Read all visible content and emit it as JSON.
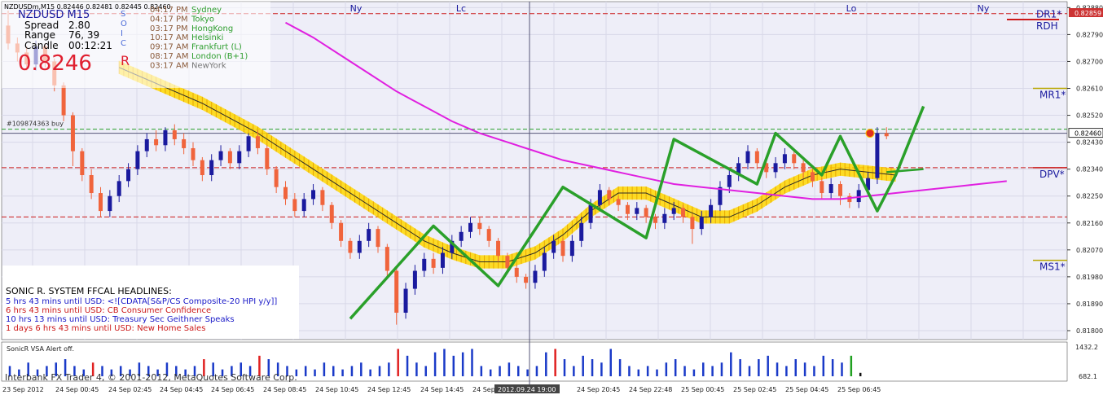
{
  "chart_data": {
    "type": "candlestick",
    "header": {
      "symbol_line": "NZDUSDm,M15  0.82446 0.82481 0.82445 0.82460",
      "pair_big": "NZDUSD",
      "tf_big": "M15",
      "spread_label": "Spread",
      "spread_value": "2.80",
      "range_label": "Range",
      "range_value": "76, 39",
      "candle_label": "Candle",
      "candle_value": "00:12:21",
      "price_big": "0.8246",
      "side_letters": [
        "S",
        "O",
        "I",
        "C",
        "R"
      ]
    },
    "sessions": [
      {
        "time": "04:17 PM",
        "name": "Sydney",
        "color": "#2e9e2e"
      },
      {
        "time": "04:17 PM",
        "name": "Tokyo",
        "color": "#2e9e2e"
      },
      {
        "time": "03:17 PM",
        "name": "HongKong",
        "color": "#2e9e2e"
      },
      {
        "time": "10:17 AM",
        "name": "Helsinki",
        "color": "#2e9e2e"
      },
      {
        "time": "09:17 AM",
        "name": "Frankfurt  (L)",
        "color": "#2e9e2e"
      },
      {
        "time": "08:17 AM",
        "name": "London  (B+1)",
        "color": "#2e9e2e"
      },
      {
        "time": "03:17 AM",
        "name": "NewYork",
        "color": "#777777"
      }
    ],
    "top_markers": [
      {
        "label": "Ny",
        "x": 437
      },
      {
        "label": "Lc",
        "x": 566
      },
      {
        "label": "Lo",
        "x": 1045
      },
      {
        "label": "Ny",
        "x": 1207
      }
    ],
    "y_axis": {
      "ylim": [
        0.8177,
        0.829
      ],
      "ticks": [
        "0.82880",
        "0.82790",
        "0.82700",
        "0.82610",
        "0.82520",
        "0.82430",
        "0.82340",
        "0.82250",
        "0.82160",
        "0.82070",
        "0.81980",
        "0.81890",
        "0.81800"
      ],
      "current_price": "0.82460",
      "top_price": "0.82859"
    },
    "levels": [
      {
        "name": "DR1*",
        "price": 0.8286,
        "style": "dash",
        "color": "#cc1a1a"
      },
      {
        "name": "RDH",
        "price": 0.8284,
        "style": "solid",
        "color": "#cc1a1a"
      },
      {
        "name": "MR1*",
        "price": 0.8261,
        "style": "solid",
        "color": "#b8a600"
      },
      {
        "name": "DPV*",
        "price": 0.82345,
        "style": "dash",
        "color": "#cc1a1a"
      },
      {
        "name": "MS1*",
        "price": 0.82035,
        "style": "solid",
        "color": "#b8a600"
      },
      {
        "name": "",
        "price": 0.8218,
        "style": "dash",
        "color": "#cc1a1a"
      }
    ],
    "order_line": {
      "label": "#109874363 buy",
      "price": 0.82468
    },
    "x_axis_labels": [
      "23 Sep 2012",
      "24 Sep 00:45",
      "24 Sep 02:45",
      "24 Sep 04:45",
      "24 Sep 06:45",
      "24 Sep 08:45",
      "24 Sep 10:45",
      "24 Sep 12:45",
      "24 Sep 14:45",
      "24 Sep 16:45",
      "2012.09.24 19:00",
      "24 Sep 20:45",
      "24 Sep 22:48",
      "25 Sep 00:45",
      "25 Sep 02:45",
      "25 Sep 04:45",
      "25 Sep 06:45"
    ],
    "highlighted_time": "2012.09.24 19:00",
    "candles": [
      [
        0.8282,
        0.8276,
        0.8287,
        0.8274
      ],
      [
        0.8276,
        0.8273,
        0.8278,
        0.827
      ],
      [
        0.8273,
        0.8269,
        0.8275,
        0.8267
      ],
      [
        0.8269,
        0.8275,
        0.8277,
        0.8267
      ],
      [
        0.8275,
        0.827,
        0.8276,
        0.8268
      ],
      [
        0.827,
        0.8262,
        0.8271,
        0.826
      ],
      [
        0.8262,
        0.8252,
        0.8263,
        0.825
      ],
      [
        0.8252,
        0.824,
        0.8253,
        0.8235
      ],
      [
        0.824,
        0.8232,
        0.8241,
        0.823
      ],
      [
        0.8232,
        0.8226,
        0.8234,
        0.8224
      ],
      [
        0.8226,
        0.822,
        0.8228,
        0.8218
      ],
      [
        0.822,
        0.8225,
        0.8227,
        0.8218
      ],
      [
        0.8225,
        0.823,
        0.8232,
        0.8223
      ],
      [
        0.823,
        0.8234,
        0.8236,
        0.8228
      ],
      [
        0.8234,
        0.824,
        0.8242,
        0.8232
      ],
      [
        0.824,
        0.8244,
        0.8246,
        0.8238
      ],
      [
        0.8244,
        0.8242,
        0.8247,
        0.824
      ],
      [
        0.8242,
        0.8247,
        0.8248,
        0.824
      ],
      [
        0.8247,
        0.8244,
        0.8249,
        0.8242
      ],
      [
        0.8244,
        0.8241,
        0.8246,
        0.8239
      ],
      [
        0.8241,
        0.8237,
        0.8243,
        0.8235
      ],
      [
        0.8237,
        0.8232,
        0.8238,
        0.823
      ],
      [
        0.8232,
        0.8237,
        0.8239,
        0.823
      ],
      [
        0.8237,
        0.824,
        0.8242,
        0.8235
      ],
      [
        0.824,
        0.8236,
        0.8241,
        0.8234
      ],
      [
        0.8236,
        0.824,
        0.8242,
        0.8234
      ],
      [
        0.824,
        0.8245,
        0.8246,
        0.8238
      ],
      [
        0.8245,
        0.8241,
        0.8247,
        0.8239
      ],
      [
        0.8241,
        0.8234,
        0.8242,
        0.8232
      ],
      [
        0.8234,
        0.8228,
        0.8235,
        0.8226
      ],
      [
        0.8228,
        0.8224,
        0.823,
        0.8222
      ],
      [
        0.8224,
        0.822,
        0.8226,
        0.8218
      ],
      [
        0.822,
        0.8224,
        0.8226,
        0.8218
      ],
      [
        0.8224,
        0.8227,
        0.8229,
        0.8222
      ],
      [
        0.8227,
        0.8222,
        0.8228,
        0.822
      ],
      [
        0.8222,
        0.8216,
        0.8223,
        0.8214
      ],
      [
        0.8216,
        0.821,
        0.8217,
        0.8208
      ],
      [
        0.821,
        0.8206,
        0.8211,
        0.8204
      ],
      [
        0.8206,
        0.821,
        0.8212,
        0.8204
      ],
      [
        0.821,
        0.8214,
        0.8216,
        0.8208
      ],
      [
        0.8214,
        0.8208,
        0.8215,
        0.8206
      ],
      [
        0.8208,
        0.82,
        0.8209,
        0.8198
      ],
      [
        0.82,
        0.8186,
        0.8201,
        0.8182
      ],
      [
        0.8186,
        0.8194,
        0.8196,
        0.8184
      ],
      [
        0.8194,
        0.82,
        0.8202,
        0.8192
      ],
      [
        0.82,
        0.8204,
        0.8206,
        0.8198
      ],
      [
        0.8204,
        0.8201,
        0.8206,
        0.8199
      ],
      [
        0.8201,
        0.8206,
        0.8208,
        0.8199
      ],
      [
        0.8206,
        0.821,
        0.8212,
        0.8204
      ],
      [
        0.821,
        0.8213,
        0.8215,
        0.8208
      ],
      [
        0.8213,
        0.8216,
        0.8218,
        0.8211
      ],
      [
        0.8216,
        0.8214,
        0.8218,
        0.8212
      ],
      [
        0.8214,
        0.821,
        0.8215,
        0.8208
      ],
      [
        0.821,
        0.8205,
        0.8211,
        0.8203
      ],
      [
        0.8205,
        0.8201,
        0.8206,
        0.8199
      ],
      [
        0.8201,
        0.8198,
        0.8202,
        0.8196
      ],
      [
        0.8198,
        0.8196,
        0.8199,
        0.8194
      ],
      [
        0.8196,
        0.82,
        0.8202,
        0.8194
      ],
      [
        0.82,
        0.8206,
        0.8208,
        0.8198
      ],
      [
        0.8206,
        0.821,
        0.8212,
        0.8204
      ],
      [
        0.821,
        0.8205,
        0.8211,
        0.8203
      ],
      [
        0.8205,
        0.821,
        0.8212,
        0.8203
      ],
      [
        0.821,
        0.8216,
        0.8218,
        0.8208
      ],
      [
        0.8216,
        0.8222,
        0.8224,
        0.8214
      ],
      [
        0.8222,
        0.8227,
        0.8229,
        0.822
      ],
      [
        0.8227,
        0.8224,
        0.8228,
        0.8222
      ],
      [
        0.8224,
        0.8222,
        0.8225,
        0.822
      ],
      [
        0.8222,
        0.8219,
        0.8223,
        0.8217
      ],
      [
        0.8219,
        0.8221,
        0.8223,
        0.8217
      ],
      [
        0.8221,
        0.8218,
        0.8222,
        0.8216
      ],
      [
        0.8218,
        0.8216,
        0.8219,
        0.8214
      ],
      [
        0.8216,
        0.8219,
        0.8221,
        0.8214
      ],
      [
        0.8219,
        0.8221,
        0.8223,
        0.8217
      ],
      [
        0.8221,
        0.8218,
        0.8222,
        0.8216
      ],
      [
        0.8218,
        0.8214,
        0.8219,
        0.8209
      ],
      [
        0.8214,
        0.8218,
        0.822,
        0.8212
      ],
      [
        0.8218,
        0.8222,
        0.8224,
        0.8216
      ],
      [
        0.8222,
        0.8228,
        0.823,
        0.822
      ],
      [
        0.8228,
        0.8232,
        0.8234,
        0.8226
      ],
      [
        0.8232,
        0.8236,
        0.8238,
        0.823
      ],
      [
        0.8236,
        0.824,
        0.8242,
        0.8234
      ],
      [
        0.824,
        0.8236,
        0.8241,
        0.8234
      ],
      [
        0.8236,
        0.8233,
        0.8237,
        0.8231
      ],
      [
        0.8233,
        0.8236,
        0.8238,
        0.8231
      ],
      [
        0.8236,
        0.8239,
        0.8241,
        0.8234
      ],
      [
        0.8239,
        0.8236,
        0.824,
        0.8234
      ],
      [
        0.8236,
        0.8233,
        0.8237,
        0.8231
      ],
      [
        0.8233,
        0.823,
        0.8234,
        0.8228
      ],
      [
        0.823,
        0.8226,
        0.8231,
        0.8224
      ],
      [
        0.8226,
        0.8229,
        0.8231,
        0.8224
      ],
      [
        0.8229,
        0.8225,
        0.823,
        0.8222
      ],
      [
        0.8225,
        0.8223,
        0.8226,
        0.8221
      ],
      [
        0.8223,
        0.8227,
        0.8229,
        0.8221
      ],
      [
        0.8227,
        0.8231,
        0.8233,
        0.8225
      ],
      [
        0.8231,
        0.8246,
        0.8248,
        0.8229
      ],
      [
        0.8246,
        0.8245,
        0.8248,
        0.8244
      ]
    ],
    "ma_center": [
      0.8268,
      0.8264,
      0.826,
      0.8256,
      0.8251,
      0.8246,
      0.824,
      0.8234,
      0.8228,
      0.8222,
      0.8216,
      0.821,
      0.8206,
      0.8203,
      0.8203,
      0.8206,
      0.8212,
      0.822,
      0.8226,
      0.8226,
      0.8222,
      0.8218,
      0.8218,
      0.8222,
      0.8228,
      0.8232,
      0.8234,
      0.8233,
      0.8232
    ],
    "ma_pink": [
      0.8283,
      0.8278,
      0.8272,
      0.8266,
      0.826,
      0.8255,
      0.825,
      0.8246,
      0.8243,
      0.824,
      0.8237,
      0.8235,
      0.8233,
      0.8231,
      0.8229,
      0.8228,
      0.8227,
      0.8226,
      0.8225,
      0.8224,
      0.8224,
      0.8225,
      0.8226,
      0.8227,
      0.8228,
      0.8229,
      0.823
    ],
    "zigzag": [
      0.8184,
      0.8215,
      0.8195,
      0.8228,
      0.8211,
      0.8244,
      0.8229,
      0.8246,
      0.8232,
      0.8245,
      0.822,
      0.8232,
      0.8255
    ],
    "vol_y_labels": [
      "1432.2",
      "682.1"
    ],
    "vsa_label": "SonicR VSA    Alert off.",
    "vsa_bars": [
      [
        3,
        "b"
      ],
      [
        2,
        "b"
      ],
      [
        4,
        "b"
      ],
      [
        2,
        "b"
      ],
      [
        3,
        "b"
      ],
      [
        4,
        "b"
      ],
      [
        5,
        "b"
      ],
      [
        3,
        "b"
      ],
      [
        2,
        "b"
      ],
      [
        4,
        "r"
      ],
      [
        3,
        "b"
      ],
      [
        2,
        "b"
      ],
      [
        3,
        "b"
      ],
      [
        2,
        "b"
      ],
      [
        4,
        "b"
      ],
      [
        3,
        "b"
      ],
      [
        2,
        "b"
      ],
      [
        4,
        "b"
      ],
      [
        3,
        "b"
      ],
      [
        2,
        "b"
      ],
      [
        3,
        "b"
      ],
      [
        5,
        "r"
      ],
      [
        4,
        "b"
      ],
      [
        2,
        "b"
      ],
      [
        3,
        "b"
      ],
      [
        4,
        "b"
      ],
      [
        3,
        "b"
      ],
      [
        6,
        "r"
      ],
      [
        5,
        "b"
      ],
      [
        4,
        "b"
      ],
      [
        3,
        "b"
      ],
      [
        2,
        "b"
      ],
      [
        3,
        "b"
      ],
      [
        2,
        "b"
      ],
      [
        4,
        "b"
      ],
      [
        3,
        "b"
      ],
      [
        2,
        "b"
      ],
      [
        3,
        "b"
      ],
      [
        4,
        "b"
      ],
      [
        2,
        "b"
      ],
      [
        3,
        "b"
      ],
      [
        4,
        "b"
      ],
      [
        8,
        "r"
      ],
      [
        6,
        "b"
      ],
      [
        4,
        "b"
      ],
      [
        3,
        "b"
      ],
      [
        7,
        "b"
      ],
      [
        8,
        "b"
      ],
      [
        6,
        "b"
      ],
      [
        7,
        "b"
      ],
      [
        8,
        "b"
      ],
      [
        3,
        "b"
      ],
      [
        2,
        "b"
      ],
      [
        3,
        "b"
      ],
      [
        4,
        "b"
      ],
      [
        3,
        "b"
      ],
      [
        2,
        "b"
      ],
      [
        3,
        "b"
      ],
      [
        7,
        "b"
      ],
      [
        8,
        "r"
      ],
      [
        5,
        "b"
      ],
      [
        3,
        "b"
      ],
      [
        6,
        "b"
      ],
      [
        5,
        "b"
      ],
      [
        4,
        "b"
      ],
      [
        8,
        "b"
      ],
      [
        5,
        "b"
      ],
      [
        3,
        "b"
      ],
      [
        2,
        "b"
      ],
      [
        3,
        "b"
      ],
      [
        2,
        "b"
      ],
      [
        4,
        "b"
      ],
      [
        5,
        "b"
      ],
      [
        3,
        "b"
      ],
      [
        2,
        "b"
      ],
      [
        4,
        "b"
      ],
      [
        3,
        "b"
      ],
      [
        4,
        "b"
      ],
      [
        7,
        "b"
      ],
      [
        5,
        "b"
      ],
      [
        3,
        "b"
      ],
      [
        5,
        "b"
      ],
      [
        6,
        "b"
      ],
      [
        4,
        "b"
      ],
      [
        3,
        "b"
      ],
      [
        5,
        "b"
      ],
      [
        4,
        "b"
      ],
      [
        3,
        "b"
      ],
      [
        6,
        "b"
      ],
      [
        5,
        "b"
      ],
      [
        4,
        "b"
      ],
      [
        6,
        "g"
      ],
      [
        1,
        "k"
      ]
    ],
    "headlines": {
      "title": "SONIC R. SYSTEM  FFCAL HEADLINES:",
      "items": [
        {
          "text": "5 hrs 43 mins until USD: <![CDATA[S&P/CS Composite-20 HPI y/y]]",
          "color": "#1a1ac8"
        },
        {
          "text": "6 hrs 43 mins until USD: CB Consumer Confidence",
          "color": "#cc1a1a"
        },
        {
          "text": "10 hrs 13 mins until USD: Treasury Sec Geithner Speaks",
          "color": "#1a1ac8"
        },
        {
          "text": "1 days 6 hrs 43 mins until USD: New Home Sales",
          "color": "#cc1a1a"
        }
      ]
    },
    "footer": "Interbank FX Trader 4, © 2001-2012, MetaQuotes Software Corp.",
    "colors": {
      "bull": "#1a1a9e",
      "bear": "#f0643c",
      "band": "#ffd700",
      "ma_line": "#2a2a2a",
      "ma_pink": "#e020e0",
      "zigzag": "#2aa02a",
      "vertical_line": "#555577"
    }
  }
}
